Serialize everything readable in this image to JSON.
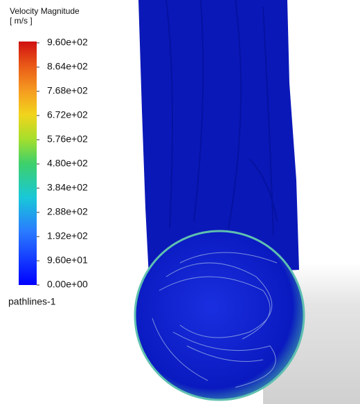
{
  "legend": {
    "title": "Velocity Magnitude",
    "unit": "[ m/s ]",
    "ticks": [
      "9.60e+02",
      "8.64e+02",
      "7.68e+02",
      "6.72e+02",
      "5.76e+02",
      "4.80e+02",
      "3.84e+02",
      "2.88e+02",
      "1.92e+02",
      "9.60e+01",
      "0.00e+00"
    ]
  },
  "footer": {
    "label": "pathlines-1"
  }
}
